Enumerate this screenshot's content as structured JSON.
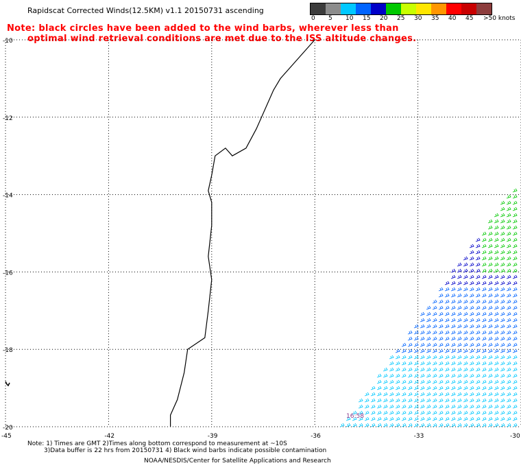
{
  "title": "Rapidscat Corrected Winds(12.5KM) v1.1 20150731 ascending",
  "note": {
    "line1": "Note: black circles have been added to the wind barbs, wherever less than",
    "line2": "optimal wind retrieval conditions are met due to the ISS altitude changes."
  },
  "legend": {
    "unit": ">50 knots",
    "ticks": [
      "0",
      "5",
      "10",
      "15",
      "20",
      "25",
      "30",
      "35",
      "40",
      "45"
    ],
    "colors": [
      "#3c3c3c",
      "#8c8c8c",
      "#00c8ff",
      "#0064ff",
      "#0000c8",
      "#00c800",
      "#c8ff00",
      "#ffe600",
      "#ff9600",
      "#ff0000",
      "#c80000",
      "#8c3c3c",
      "#b400b4",
      "#ff00ff",
      "#6400c8"
    ]
  },
  "map": {
    "lat_labels": [
      "-10",
      "-12",
      "-14",
      "-16",
      "-18",
      "-20"
    ],
    "lon_labels": [
      "-45",
      "-42",
      "-39",
      "-36",
      "-33",
      "-30"
    ],
    "time_label": "16:58",
    "lat_range": [
      -20,
      -10
    ],
    "lon_range": [
      -45,
      -30
    ],
    "grid": "dotted",
    "barb_colors": {
      "low": "#00c8ff",
      "mid": "#0064ff",
      "high": "#0000c8",
      "strong": "#00c800"
    }
  },
  "footer": {
    "line1": "Note: 1) Times are GMT 2)Times along bottom correspond to measurement at ~10S",
    "line2": "3)Data buffer is 22 hrs from 20150731 4) Black wind barbs indicate possible contamination",
    "credit": "NOAA/NESDIS/Center for Satellite Applications and Research"
  }
}
